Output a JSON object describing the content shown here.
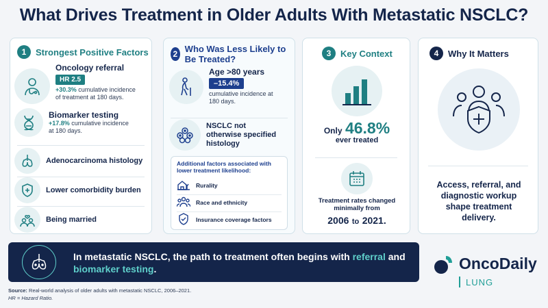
{
  "title": "What Drives Treatment in Older Adults With Metastatic NSCLC?",
  "card1": {
    "number": "1",
    "heading": "Strongest Positive Factors",
    "referral": {
      "label": "Oncology referral",
      "badge": "HR 2.5",
      "stat": "+30.3%",
      "text": " cumulative incidence of treatment at 180 days."
    },
    "biomarker": {
      "label": "Biomarker testing",
      "stat": "+17.8%",
      "text": " cumulative incidence at 180 days."
    },
    "adeno": "Adenocarcinoma histology",
    "comorbidity": "Lower comorbidity burden",
    "married": "Being married"
  },
  "card2": {
    "number": "2",
    "heading": "Who Was Less Likely to Be Treated?",
    "age": {
      "label": "Age >80 years",
      "badge": "–15.4%",
      "text": "cumulative incidence at 180 days."
    },
    "nos": "NSCLC not otherwise specified histology",
    "additional": {
      "title": "Additional factors associated with lower treatment likelihood:",
      "items": [
        "Rurality",
        "Race and ethnicity",
        "Insurance coverage factors"
      ]
    }
  },
  "card3": {
    "number": "3",
    "heading": "Key Context",
    "only": "Only",
    "pct": "46.8%",
    "ever": "ever treated",
    "rates": "Treatment rates changed minimally from",
    "y1": "2006",
    "to": "to",
    "y2": "2021."
  },
  "card4": {
    "number": "4",
    "heading": "Why It Matters",
    "text": "Access, referral, and diagnostic workup shape treatment delivery."
  },
  "banner": {
    "part1": "In metastatic NSCLC, the path to treatment often begins with ",
    "hl1": "referral",
    "part2": " and ",
    "hl2": "biomarker testing",
    "part3": "."
  },
  "brand": {
    "name": "OncoDaily",
    "sub": "LUNG"
  },
  "footer": {
    "source_label": "Source:",
    "source": " Real-world analysis of older adults with metastatic NSCLC, 2006–2021.",
    "hr": "HR = Hazard Ratio."
  },
  "colors": {
    "navy": "#14254a",
    "teal": "#1f7f82",
    "highlight": "#5fd0cb"
  }
}
